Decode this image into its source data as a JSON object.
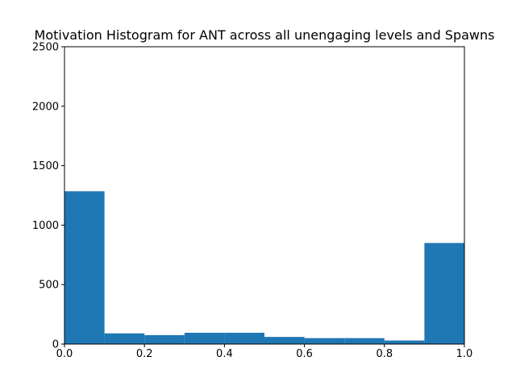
{
  "chart_data": {
    "type": "bar",
    "title": "Motivation Histogram for ANT across all unengaging levels and Spawns",
    "xlabel": "",
    "ylabel": "",
    "xlim": [
      0.0,
      1.0
    ],
    "ylim": [
      0,
      2500
    ],
    "bin_edges": [
      0.0,
      0.1,
      0.2,
      0.3,
      0.4,
      0.5,
      0.6,
      0.7,
      0.8,
      0.9,
      1.0
    ],
    "values": [
      1285,
      90,
      75,
      95,
      95,
      60,
      50,
      50,
      30,
      850
    ],
    "x_ticks": [
      "0.0",
      "0.2",
      "0.4",
      "0.6",
      "0.8",
      "1.0"
    ],
    "x_tick_values": [
      0.0,
      0.2,
      0.4,
      0.6,
      0.8,
      1.0
    ],
    "y_ticks": [
      "0",
      "500",
      "1000",
      "1500",
      "2000",
      "2500"
    ],
    "y_tick_values": [
      0,
      500,
      1000,
      1500,
      2000,
      2500
    ],
    "bar_color": "#1f77b4",
    "grid": false
  }
}
